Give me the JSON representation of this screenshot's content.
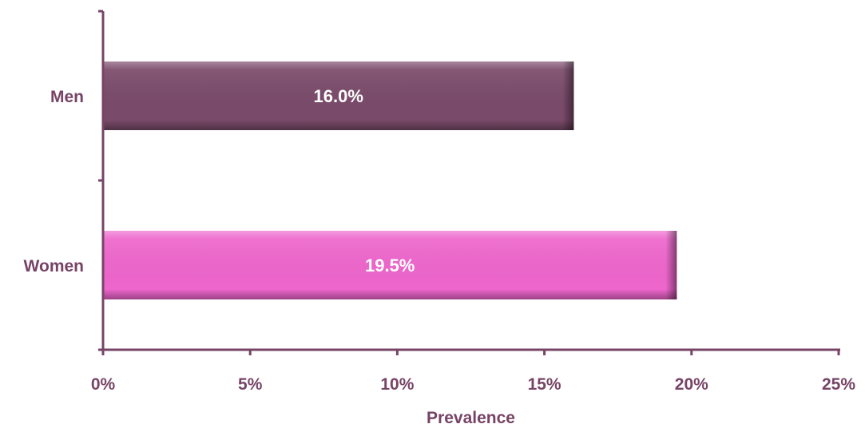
{
  "chart_data": {
    "type": "bar",
    "orientation": "horizontal",
    "categories": [
      "Men",
      "Women"
    ],
    "values": [
      16.0,
      19.5
    ],
    "data_labels": [
      "16.0%",
      "19.5%"
    ],
    "bar_colors": [
      "#7a4a6a",
      "#ee66cc"
    ],
    "title": "",
    "xlabel": "Prevalence",
    "ylabel": "",
    "xlim": [
      0,
      25
    ],
    "x_ticks": [
      0,
      5,
      10,
      15,
      20,
      25
    ],
    "x_tick_labels": [
      "0%",
      "5%",
      "10%",
      "15%",
      "20%",
      "25%"
    ],
    "grid": false,
    "legend": "none"
  },
  "colors": {
    "text": "#774466",
    "axis": "#774466"
  }
}
